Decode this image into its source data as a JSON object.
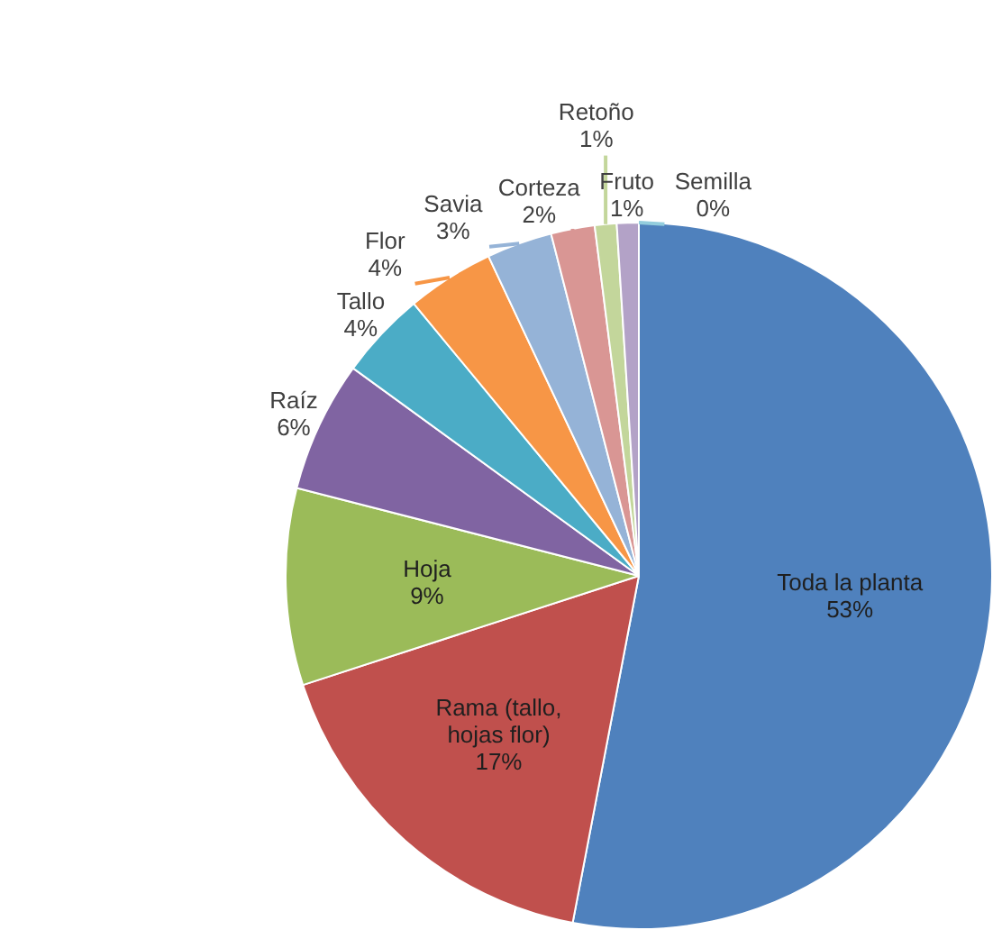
{
  "chart_data": {
    "type": "pie",
    "categories": [
      "Toda la planta",
      "Rama (tallo, hojas flor)",
      "Hoja",
      "Raíz",
      "Tallo",
      "Flor",
      "Savia",
      "Corteza",
      "Retoño",
      "Fruto",
      "Semilla"
    ],
    "values": [
      53,
      17,
      9,
      6,
      4,
      4,
      3,
      2,
      1,
      1,
      0
    ],
    "colors": [
      "#4f81bd",
      "#c0504d",
      "#9bbb59",
      "#8064a2",
      "#4bacc6",
      "#f79646",
      "#95b3d7",
      "#d99694",
      "#c3d69b",
      "#b3a2c7",
      "#93cddd"
    ],
    "value_labels": [
      "53%",
      "17%",
      "9%",
      "6%",
      "4%",
      "4%",
      "3%",
      "2%",
      "1%",
      "1%",
      "0%"
    ]
  }
}
